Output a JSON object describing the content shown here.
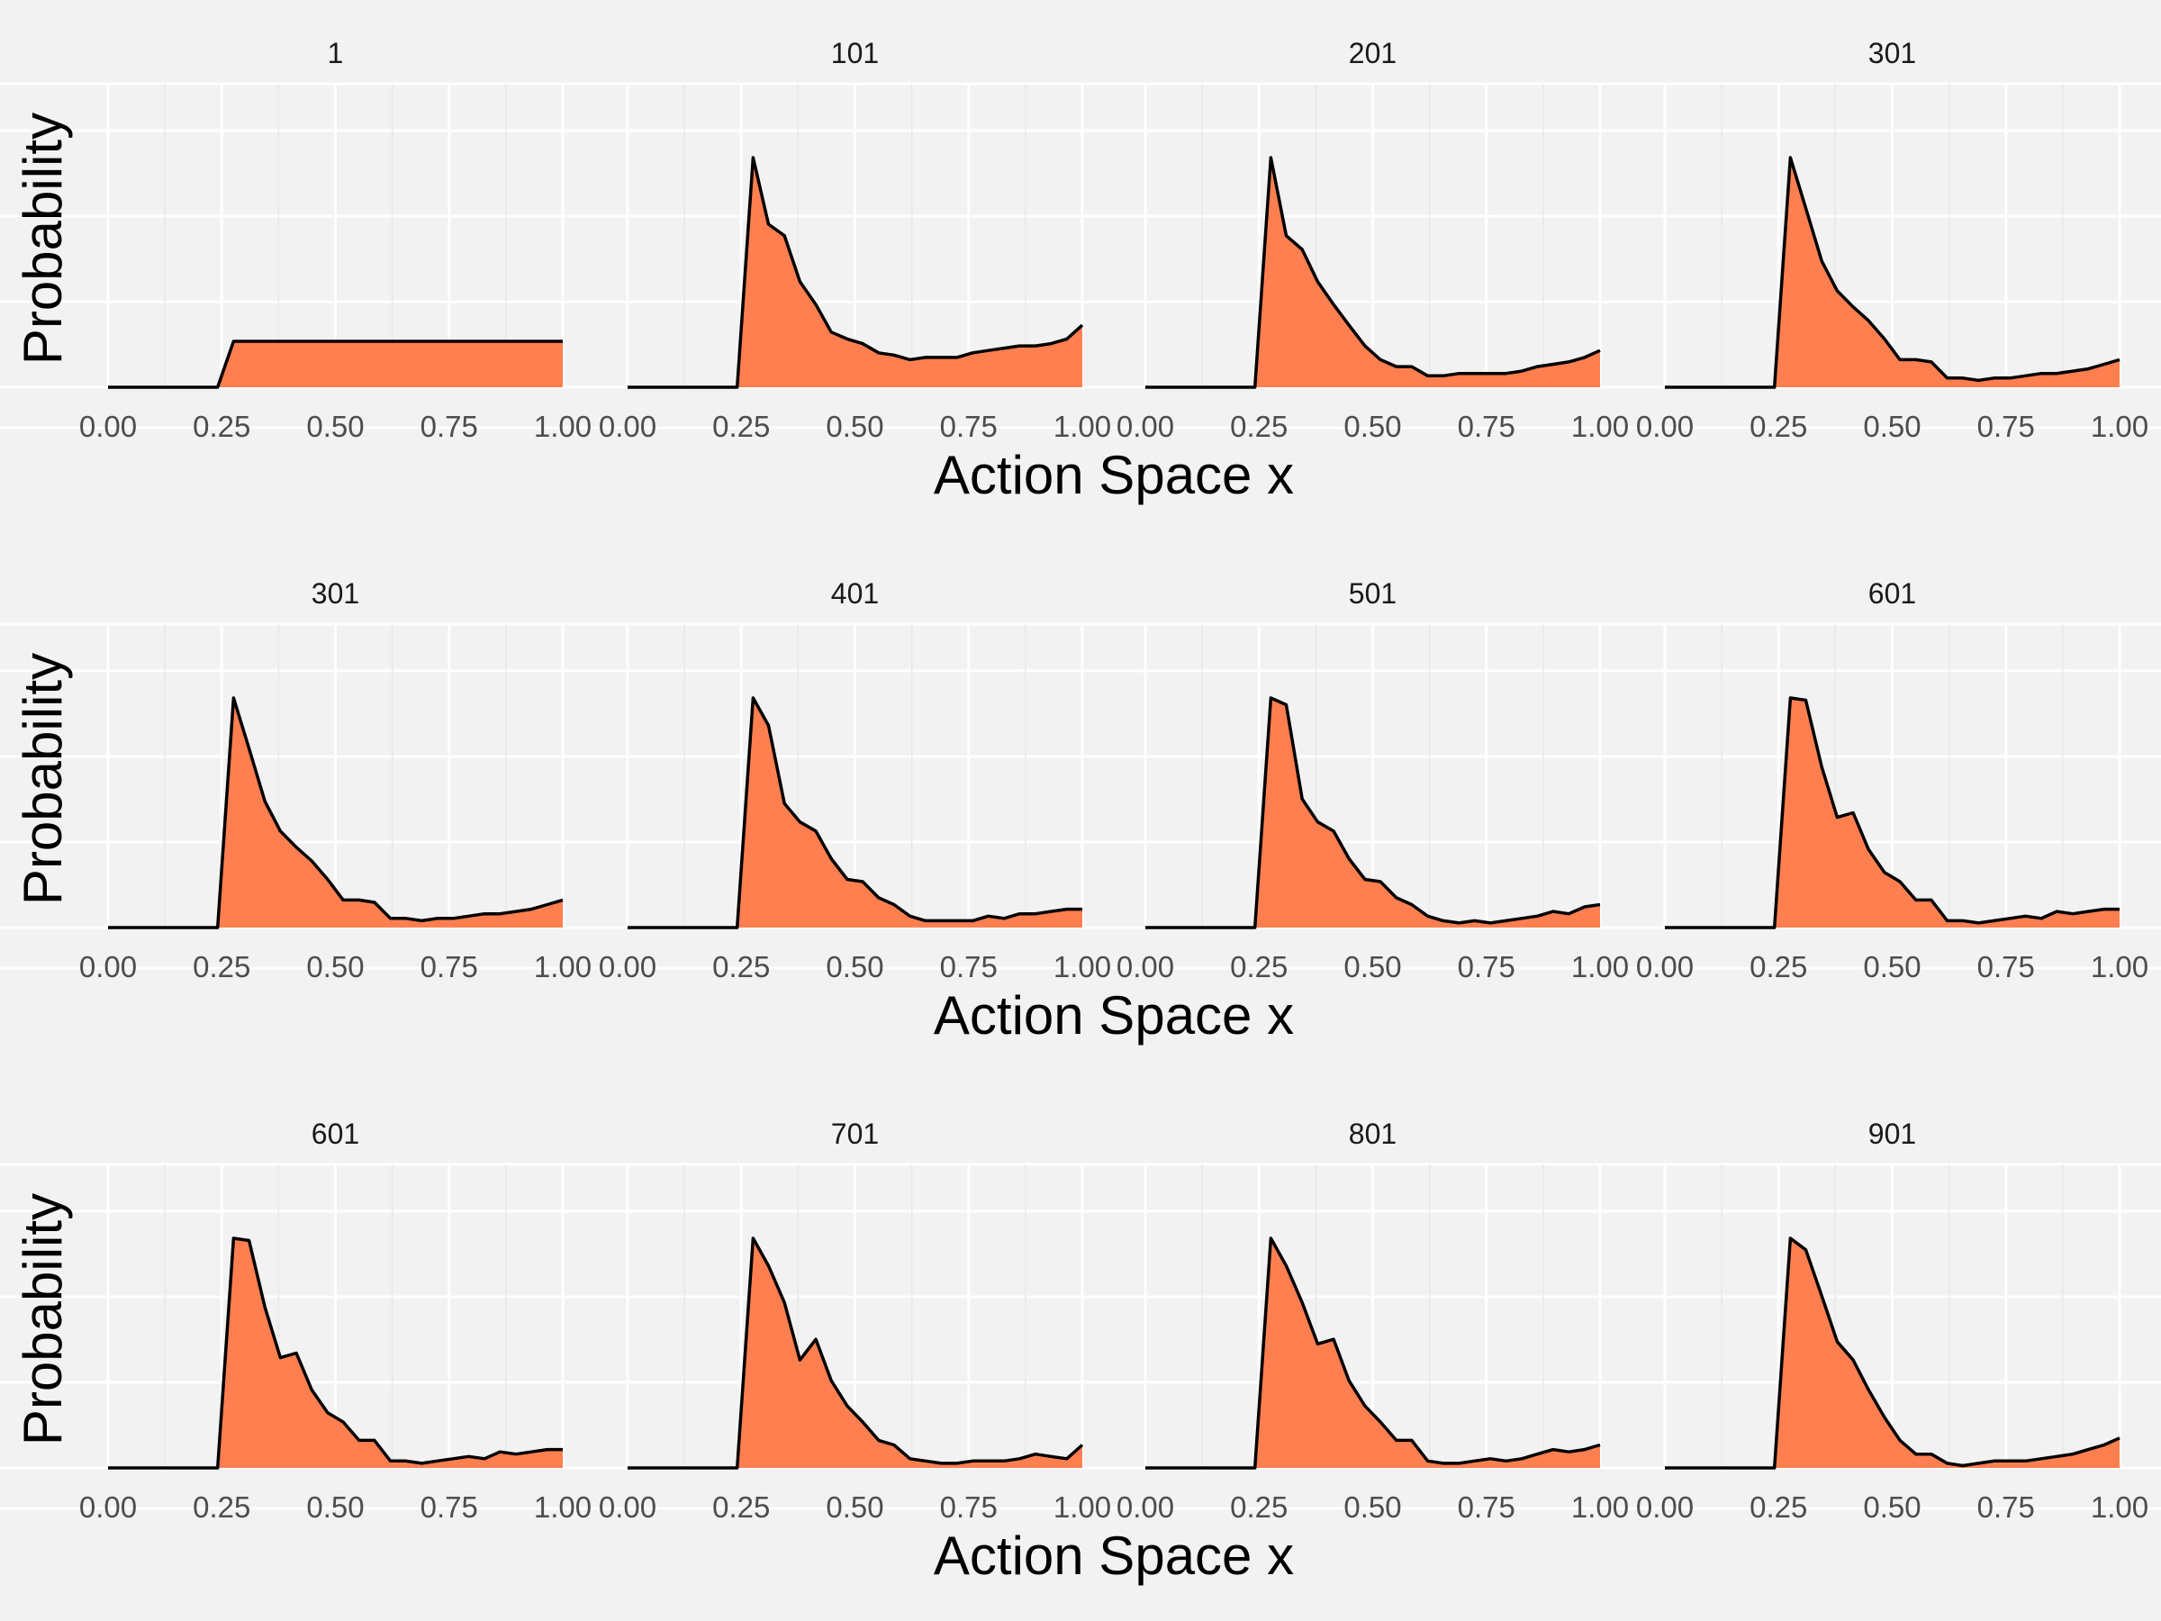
{
  "colors": {
    "background": "#f2f2f2",
    "grid_major": "#ffffff",
    "grid_minor": "#fafafa",
    "fill": "#ff7f50",
    "line": "#000000"
  },
  "chart_data": {
    "type": "area",
    "xlabel": "Action Space x",
    "ylabel": "Probability",
    "xlim": [
      0,
      1
    ],
    "x_ticks": [
      "0.00",
      "0.25",
      "0.50",
      "0.75",
      "1.00"
    ],
    "y_tick_labels_shown": false,
    "grid": true,
    "legend": "none",
    "layout": {
      "rows": 3,
      "columns": 4
    },
    "x": [
      0.0,
      0.034,
      0.069,
      0.103,
      0.138,
      0.172,
      0.207,
      0.241,
      0.276,
      0.31,
      0.345,
      0.379,
      0.414,
      0.448,
      0.483,
      0.517,
      0.552,
      0.586,
      0.621,
      0.655,
      0.69,
      0.724,
      0.759,
      0.793,
      0.828,
      0.862,
      0.897,
      0.931,
      0.966,
      1.0
    ],
    "panels": [
      {
        "row": 0,
        "label": "1",
        "values": [
          0,
          0,
          0,
          0,
          0,
          0,
          0,
          0,
          0.2,
          0.2,
          0.2,
          0.2,
          0.2,
          0.2,
          0.2,
          0.2,
          0.2,
          0.2,
          0.2,
          0.2,
          0.2,
          0.2,
          0.2,
          0.2,
          0.2,
          0.2,
          0.2,
          0.2,
          0.2,
          0.2
        ]
      },
      {
        "row": 0,
        "label": "101",
        "values": [
          0,
          0,
          0,
          0,
          0,
          0,
          0,
          0,
          1.0,
          0.71,
          0.66,
          0.46,
          0.36,
          0.24,
          0.21,
          0.19,
          0.15,
          0.14,
          0.12,
          0.13,
          0.13,
          0.13,
          0.15,
          0.16,
          0.17,
          0.18,
          0.18,
          0.19,
          0.21,
          0.27
        ]
      },
      {
        "row": 0,
        "label": "201",
        "values": [
          0,
          0,
          0,
          0,
          0,
          0,
          0,
          0,
          1.0,
          0.66,
          0.6,
          0.46,
          0.36,
          0.27,
          0.18,
          0.12,
          0.09,
          0.09,
          0.05,
          0.05,
          0.06,
          0.06,
          0.06,
          0.06,
          0.07,
          0.09,
          0.1,
          0.11,
          0.13,
          0.16
        ]
      },
      {
        "row": 0,
        "label": "301",
        "values": [
          0,
          0,
          0,
          0,
          0,
          0,
          0,
          0,
          1.0,
          0.78,
          0.55,
          0.42,
          0.35,
          0.29,
          0.21,
          0.12,
          0.12,
          0.11,
          0.04,
          0.04,
          0.03,
          0.04,
          0.04,
          0.05,
          0.06,
          0.06,
          0.07,
          0.08,
          0.1,
          0.12
        ]
      },
      {
        "row": 1,
        "label": "301",
        "values": [
          0,
          0,
          0,
          0,
          0,
          0,
          0,
          0,
          1.0,
          0.78,
          0.55,
          0.42,
          0.35,
          0.29,
          0.21,
          0.12,
          0.12,
          0.11,
          0.04,
          0.04,
          0.03,
          0.04,
          0.04,
          0.05,
          0.06,
          0.06,
          0.07,
          0.08,
          0.1,
          0.12
        ]
      },
      {
        "row": 1,
        "label": "401",
        "values": [
          0,
          0,
          0,
          0,
          0,
          0,
          0,
          0,
          1.0,
          0.88,
          0.54,
          0.46,
          0.42,
          0.3,
          0.21,
          0.2,
          0.13,
          0.1,
          0.05,
          0.03,
          0.03,
          0.03,
          0.03,
          0.05,
          0.04,
          0.06,
          0.06,
          0.07,
          0.08,
          0.08
        ]
      },
      {
        "row": 1,
        "label": "501",
        "values": [
          0,
          0,
          0,
          0,
          0,
          0,
          0,
          0,
          1.0,
          0.97,
          0.56,
          0.46,
          0.42,
          0.3,
          0.21,
          0.2,
          0.13,
          0.1,
          0.05,
          0.03,
          0.02,
          0.03,
          0.02,
          0.03,
          0.04,
          0.05,
          0.07,
          0.06,
          0.09,
          0.1
        ]
      },
      {
        "row": 1,
        "label": "601",
        "values": [
          0,
          0,
          0,
          0,
          0,
          0,
          0,
          0,
          1.0,
          0.99,
          0.7,
          0.48,
          0.5,
          0.34,
          0.24,
          0.2,
          0.12,
          0.12,
          0.03,
          0.03,
          0.02,
          0.03,
          0.04,
          0.05,
          0.04,
          0.07,
          0.06,
          0.07,
          0.08,
          0.08
        ]
      },
      {
        "row": 2,
        "label": "601",
        "values": [
          0,
          0,
          0,
          0,
          0,
          0,
          0,
          0,
          1.0,
          0.99,
          0.7,
          0.48,
          0.5,
          0.34,
          0.24,
          0.2,
          0.12,
          0.12,
          0.03,
          0.03,
          0.02,
          0.03,
          0.04,
          0.05,
          0.04,
          0.07,
          0.06,
          0.07,
          0.08,
          0.08
        ]
      },
      {
        "row": 2,
        "label": "701",
        "values": [
          0,
          0,
          0,
          0,
          0,
          0,
          0,
          0,
          1.0,
          0.88,
          0.72,
          0.47,
          0.56,
          0.38,
          0.27,
          0.2,
          0.12,
          0.1,
          0.04,
          0.03,
          0.02,
          0.02,
          0.03,
          0.03,
          0.03,
          0.04,
          0.06,
          0.05,
          0.04,
          0.1
        ]
      },
      {
        "row": 2,
        "label": "801",
        "values": [
          0,
          0,
          0,
          0,
          0,
          0,
          0,
          0,
          1.0,
          0.88,
          0.72,
          0.54,
          0.56,
          0.38,
          0.27,
          0.2,
          0.12,
          0.12,
          0.03,
          0.02,
          0.02,
          0.03,
          0.04,
          0.03,
          0.04,
          0.06,
          0.08,
          0.07,
          0.08,
          0.1
        ]
      },
      {
        "row": 2,
        "label": "901",
        "values": [
          0,
          0,
          0,
          0,
          0,
          0,
          0,
          0,
          1.0,
          0.95,
          0.75,
          0.55,
          0.47,
          0.34,
          0.22,
          0.12,
          0.06,
          0.06,
          0.02,
          0.01,
          0.02,
          0.03,
          0.03,
          0.03,
          0.04,
          0.05,
          0.06,
          0.08,
          0.1,
          0.13
        ]
      }
    ]
  }
}
